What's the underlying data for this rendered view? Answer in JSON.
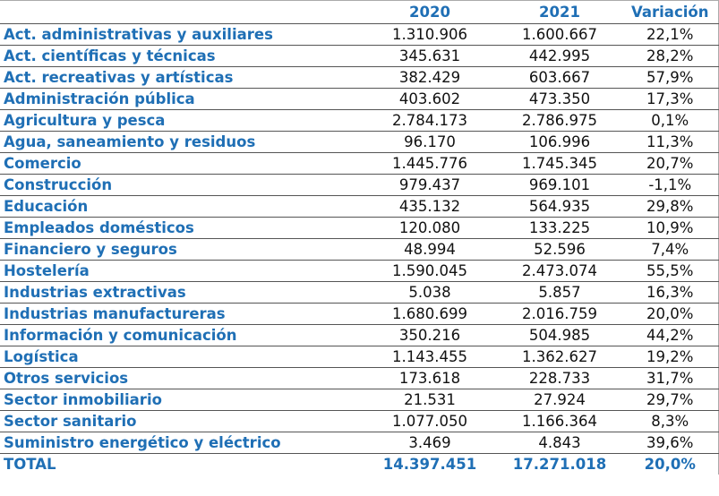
{
  "header": {
    "col1": "",
    "col2020": "2020",
    "col2021": "2021",
    "colvar": "Variación"
  },
  "rows": [
    {
      "sector": "Act. administrativas y auxiliares",
      "y2020": "1.310.906",
      "y2021": "1.600.667",
      "var": "22,1%"
    },
    {
      "sector": "Act. científicas y técnicas",
      "y2020": "345.631",
      "y2021": "442.995",
      "var": "28,2%"
    },
    {
      "sector": "Act. recreativas y artísticas",
      "y2020": "382.429",
      "y2021": "603.667",
      "var": "57,9%"
    },
    {
      "sector": "Administración pública",
      "y2020": "403.602",
      "y2021": "473.350",
      "var": "17,3%"
    },
    {
      "sector": "Agricultura y pesca",
      "y2020": "2.784.173",
      "y2021": "2.786.975",
      "var": "0,1%"
    },
    {
      "sector": "Agua, saneamiento y residuos",
      "y2020": "96.170",
      "y2021": "106.996",
      "var": "11,3%"
    },
    {
      "sector": "Comercio",
      "y2020": "1.445.776",
      "y2021": "1.745.345",
      "var": "20,7%"
    },
    {
      "sector": "Construcción",
      "y2020": "979.437",
      "y2021": "969.101",
      "var": "-1,1%"
    },
    {
      "sector": "Educación",
      "y2020": "435.132",
      "y2021": "564.935",
      "var": "29,8%"
    },
    {
      "sector": "Empleados domésticos",
      "y2020": "120.080",
      "y2021": "133.225",
      "var": "10,9%"
    },
    {
      "sector": "Financiero y seguros",
      "y2020": "48.994",
      "y2021": "52.596",
      "var": "7,4%"
    },
    {
      "sector": "Hostelería",
      "y2020": "1.590.045",
      "y2021": "2.473.074",
      "var": "55,5%"
    },
    {
      "sector": "Industrias extractivas",
      "y2020": "5.038",
      "y2021": "5.857",
      "var": "16,3%"
    },
    {
      "sector": "Industrias manufactureras",
      "y2020": "1.680.699",
      "y2021": "2.016.759",
      "var": "20,0%"
    },
    {
      "sector": "Información y comunicación",
      "y2020": "350.216",
      "y2021": "504.985",
      "var": "44,2%"
    },
    {
      "sector": "Logística",
      "y2020": "1.143.455",
      "y2021": "1.362.627",
      "var": "19,2%"
    },
    {
      "sector": "Otros servicios",
      "y2020": "173.618",
      "y2021": "228.733",
      "var": "31,7%"
    },
    {
      "sector": "Sector inmobiliario",
      "y2020": "21.531",
      "y2021": "27.924",
      "var": "29,7%"
    },
    {
      "sector": "Sector sanitario",
      "y2020": "1.077.050",
      "y2021": "1.166.364",
      "var": "8,3%"
    },
    {
      "sector": "Suministro energético y eléctrico",
      "y2020": "3.469",
      "y2021": "4.843",
      "var": "39,6%"
    }
  ],
  "total": {
    "sector": "TOTAL",
    "y2020": "14.397.451",
    "y2021": "17.271.018",
    "var": "20,0%"
  }
}
